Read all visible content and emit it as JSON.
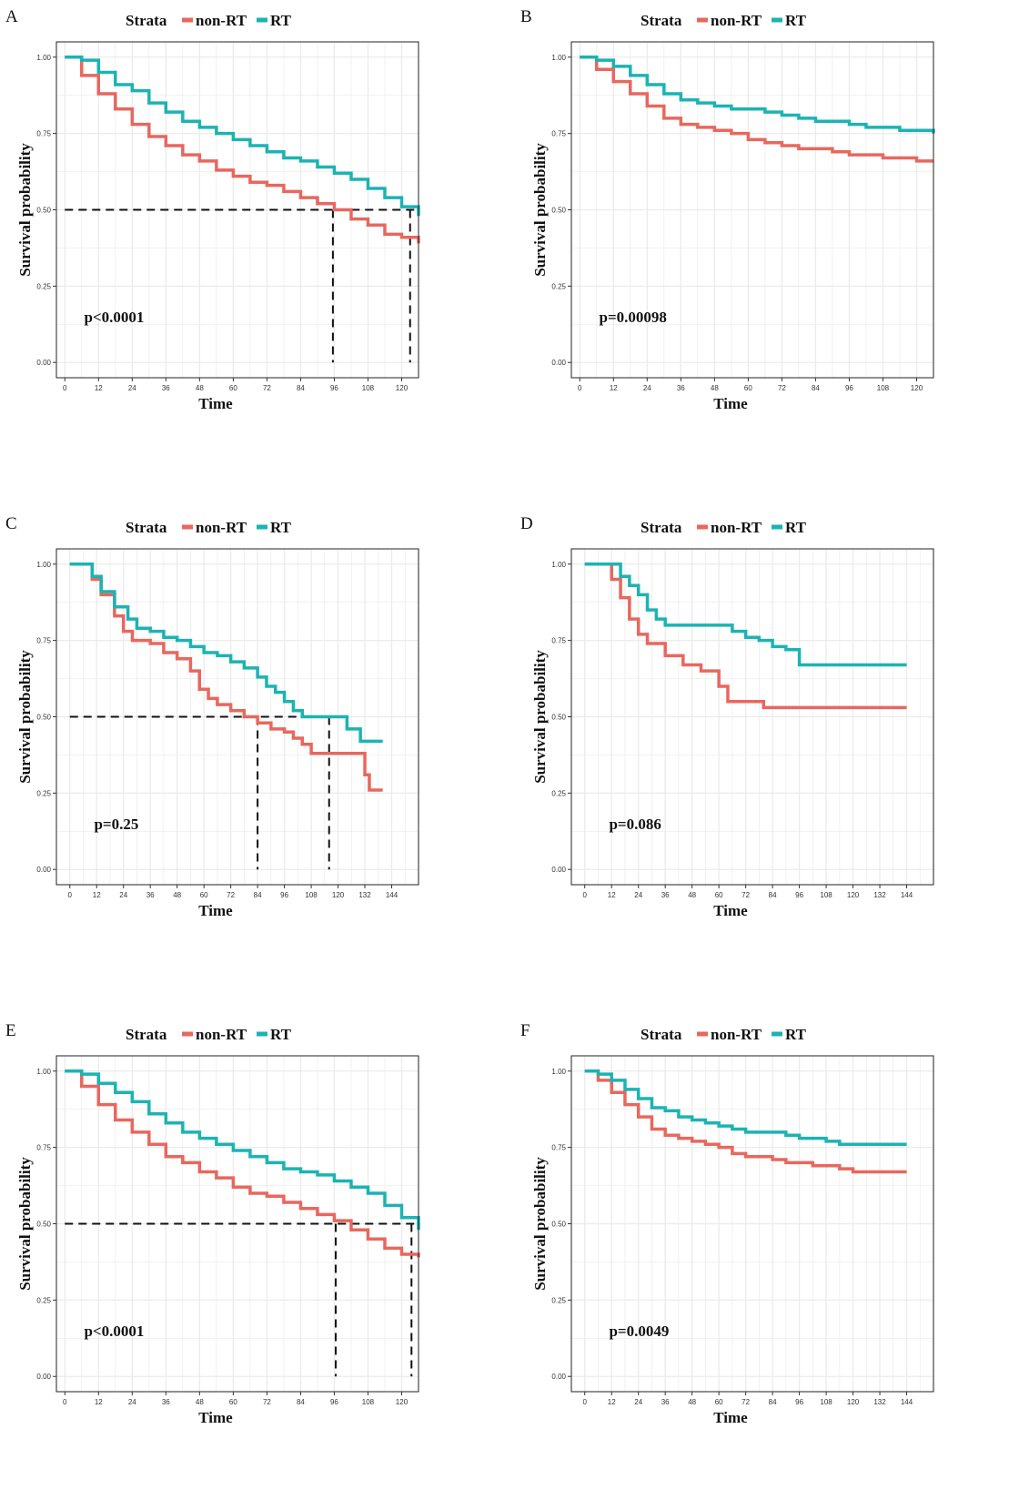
{
  "colors": {
    "non_rt": "#E8675E",
    "rt": "#1CB3B3",
    "grid": "#EBEBEB",
    "median": "#111111"
  },
  "legend": {
    "title": "Strata",
    "items": [
      "non-RT",
      "RT"
    ]
  },
  "chart_data": [
    {
      "panel": "A",
      "type": "line",
      "title": "",
      "xlabel": "Time",
      "ylabel": "Survival probability",
      "xticks": [
        0,
        12,
        24,
        36,
        48,
        60,
        72,
        84,
        96,
        108,
        120
      ],
      "yticks": [
        "0.00",
        "0.25",
        "0.50",
        "0.75",
        "1.00"
      ],
      "xlim": [
        -3,
        126
      ],
      "ylim": [
        -0.05,
        1.05
      ],
      "pvalue": "p<0.0001",
      "pvalue_at": [
        3,
        0.15
      ],
      "medians": [
        95.5,
        123
      ],
      "median_hline_range": [
        0,
        125
      ],
      "series": [
        {
          "name": "non-RT",
          "x": [
            0,
            6,
            12,
            18,
            24,
            30,
            36,
            42,
            48,
            54,
            60,
            66,
            72,
            78,
            84,
            90,
            96,
            102,
            108,
            114,
            120,
            126
          ],
          "y": [
            1.0,
            0.94,
            0.88,
            0.83,
            0.78,
            0.74,
            0.71,
            0.68,
            0.66,
            0.63,
            0.61,
            0.59,
            0.58,
            0.56,
            0.54,
            0.52,
            0.5,
            0.47,
            0.45,
            0.42,
            0.41,
            0.39
          ]
        },
        {
          "name": "RT",
          "x": [
            0,
            6,
            12,
            18,
            24,
            30,
            36,
            42,
            48,
            54,
            60,
            66,
            72,
            78,
            84,
            90,
            96,
            102,
            108,
            114,
            120,
            126
          ],
          "y": [
            1.0,
            0.99,
            0.95,
            0.91,
            0.89,
            0.85,
            0.82,
            0.79,
            0.77,
            0.75,
            0.73,
            0.71,
            0.69,
            0.67,
            0.66,
            0.64,
            0.62,
            0.6,
            0.57,
            0.54,
            0.51,
            0.48
          ]
        }
      ]
    },
    {
      "panel": "B",
      "type": "line",
      "title": "",
      "xlabel": "Time",
      "ylabel": "Survival probability",
      "xticks": [
        0,
        12,
        24,
        36,
        48,
        60,
        72,
        84,
        96,
        108,
        120
      ],
      "yticks": [
        "0.00",
        "0.25",
        "0.50",
        "0.75",
        "1.00"
      ],
      "xlim": [
        -3,
        126
      ],
      "ylim": [
        -0.05,
        1.05
      ],
      "pvalue": "p=0.00098",
      "pvalue_at": [
        3,
        0.15
      ],
      "medians": [],
      "median_hline_range": [],
      "series": [
        {
          "name": "non-RT",
          "x": [
            0,
            6,
            12,
            18,
            24,
            30,
            36,
            42,
            48,
            54,
            60,
            66,
            72,
            78,
            84,
            90,
            96,
            102,
            108,
            114,
            120,
            126
          ],
          "y": [
            1.0,
            0.96,
            0.92,
            0.88,
            0.84,
            0.8,
            0.78,
            0.77,
            0.76,
            0.75,
            0.73,
            0.72,
            0.71,
            0.7,
            0.7,
            0.69,
            0.68,
            0.68,
            0.67,
            0.67,
            0.66,
            0.66
          ]
        },
        {
          "name": "RT",
          "x": [
            0,
            6,
            12,
            18,
            24,
            30,
            36,
            42,
            48,
            54,
            60,
            66,
            72,
            78,
            84,
            90,
            96,
            102,
            108,
            114,
            120,
            126
          ],
          "y": [
            1.0,
            0.99,
            0.97,
            0.94,
            0.91,
            0.88,
            0.86,
            0.85,
            0.84,
            0.83,
            0.83,
            0.82,
            0.81,
            0.8,
            0.79,
            0.79,
            0.78,
            0.77,
            0.77,
            0.76,
            0.76,
            0.75
          ]
        }
      ]
    },
    {
      "panel": "C",
      "type": "line",
      "title": "",
      "xlabel": "Time",
      "ylabel": "Survival probability",
      "xticks": [
        0,
        12,
        24,
        36,
        48,
        60,
        72,
        84,
        96,
        108,
        120,
        132,
        144
      ],
      "yticks": [
        "0.00",
        "0.25",
        "0.50",
        "0.75",
        "1.00"
      ],
      "xlim": [
        -6,
        156
      ],
      "ylim": [
        -0.05,
        1.05
      ],
      "pvalue": "p=0.25",
      "pvalue_at": [
        6,
        0.15
      ],
      "medians": [
        84,
        116
      ],
      "median_hline_range": [
        0,
        116
      ],
      "series": [
        {
          "name": "non-RT",
          "x": [
            0,
            8,
            10,
            14,
            20,
            24,
            28,
            36,
            42,
            48,
            54,
            58,
            62,
            66,
            72,
            78,
            84,
            90,
            96,
            100,
            104,
            108,
            116,
            124,
            128,
            132,
            134,
            140
          ],
          "y": [
            1.0,
            1.0,
            0.95,
            0.9,
            0.83,
            0.78,
            0.75,
            0.74,
            0.71,
            0.69,
            0.65,
            0.59,
            0.56,
            0.54,
            0.52,
            0.5,
            0.48,
            0.46,
            0.45,
            0.43,
            0.41,
            0.38,
            0.38,
            0.38,
            0.38,
            0.31,
            0.26,
            0.26
          ]
        },
        {
          "name": "RT",
          "x": [
            0,
            8,
            10,
            14,
            20,
            26,
            30,
            36,
            42,
            48,
            54,
            60,
            66,
            72,
            78,
            84,
            88,
            92,
            96,
            100,
            104,
            108,
            116,
            124,
            130,
            140
          ],
          "y": [
            1.0,
            1.0,
            0.96,
            0.91,
            0.86,
            0.82,
            0.79,
            0.78,
            0.76,
            0.75,
            0.73,
            0.71,
            0.7,
            0.68,
            0.66,
            0.63,
            0.6,
            0.58,
            0.55,
            0.52,
            0.5,
            0.5,
            0.5,
            0.46,
            0.42,
            0.42
          ]
        }
      ]
    },
    {
      "panel": "D",
      "type": "line",
      "title": "",
      "xlabel": "Time",
      "ylabel": "Survival probability",
      "xticks": [
        0,
        12,
        24,
        36,
        48,
        60,
        72,
        84,
        96,
        108,
        120,
        132,
        144
      ],
      "yticks": [
        "0.00",
        "0.25",
        "0.50",
        "0.75",
        "1.00"
      ],
      "xlim": [
        -6,
        156
      ],
      "ylim": [
        -0.05,
        1.05
      ],
      "pvalue": "p=0.086",
      "pvalue_at": [
        6,
        0.15
      ],
      "medians": [],
      "median_hline_range": [],
      "series": [
        {
          "name": "non-RT",
          "x": [
            0,
            8,
            12,
            16,
            20,
            24,
            28,
            36,
            44,
            52,
            60,
            64,
            66,
            80,
            90,
            144
          ],
          "y": [
            1.0,
            1.0,
            0.95,
            0.89,
            0.82,
            0.77,
            0.74,
            0.7,
            0.67,
            0.65,
            0.6,
            0.55,
            0.55,
            0.53,
            0.53,
            0.53
          ]
        },
        {
          "name": "RT",
          "x": [
            0,
            12,
            16,
            20,
            24,
            28,
            32,
            36,
            48,
            60,
            66,
            72,
            78,
            84,
            90,
            96,
            104,
            144
          ],
          "y": [
            1.0,
            1.0,
            0.96,
            0.93,
            0.9,
            0.85,
            0.82,
            0.8,
            0.8,
            0.8,
            0.78,
            0.76,
            0.75,
            0.73,
            0.72,
            0.67,
            0.67,
            0.67
          ]
        }
      ]
    },
    {
      "panel": "E",
      "type": "line",
      "title": "",
      "xlabel": "Time",
      "ylabel": "Survival probability",
      "xticks": [
        0,
        12,
        24,
        36,
        48,
        60,
        72,
        84,
        96,
        108,
        120
      ],
      "yticks": [
        "0.00",
        "0.25",
        "0.50",
        "0.75",
        "1.00"
      ],
      "xlim": [
        -3,
        126
      ],
      "ylim": [
        -0.05,
        1.05
      ],
      "pvalue": "p<0.0001",
      "pvalue_at": [
        3,
        0.15
      ],
      "medians": [
        96.5,
        123.5
      ],
      "median_hline_range": [
        0,
        125
      ],
      "series": [
        {
          "name": "non-RT",
          "x": [
            0,
            6,
            12,
            18,
            24,
            30,
            36,
            42,
            48,
            54,
            60,
            66,
            72,
            78,
            84,
            90,
            96,
            102,
            108,
            114,
            120,
            126
          ],
          "y": [
            1.0,
            0.95,
            0.89,
            0.84,
            0.8,
            0.76,
            0.72,
            0.7,
            0.67,
            0.65,
            0.62,
            0.6,
            0.59,
            0.57,
            0.55,
            0.53,
            0.51,
            0.48,
            0.45,
            0.42,
            0.4,
            0.39
          ]
        },
        {
          "name": "RT",
          "x": [
            0,
            6,
            12,
            18,
            24,
            30,
            36,
            42,
            48,
            54,
            60,
            66,
            72,
            78,
            84,
            90,
            96,
            102,
            108,
            114,
            120,
            126
          ],
          "y": [
            1.0,
            0.99,
            0.96,
            0.93,
            0.9,
            0.86,
            0.83,
            0.8,
            0.78,
            0.76,
            0.74,
            0.72,
            0.7,
            0.68,
            0.67,
            0.66,
            0.64,
            0.62,
            0.6,
            0.56,
            0.52,
            0.48
          ]
        }
      ]
    },
    {
      "panel": "F",
      "type": "line",
      "title": "",
      "xlabel": "Time",
      "ylabel": "Survival probability",
      "xticks": [
        0,
        12,
        24,
        36,
        48,
        60,
        72,
        84,
        96,
        108,
        120,
        132,
        144
      ],
      "yticks": [
        "0.00",
        "0.25",
        "0.50",
        "0.75",
        "1.00"
      ],
      "xlim": [
        -6,
        156
      ],
      "ylim": [
        -0.05,
        1.05
      ],
      "pvalue": "p=0.0049",
      "pvalue_at": [
        6,
        0.15
      ],
      "medians": [],
      "median_hline_range": [],
      "series": [
        {
          "name": "non-RT",
          "x": [
            0,
            6,
            12,
            18,
            24,
            30,
            36,
            42,
            48,
            54,
            60,
            66,
            72,
            78,
            84,
            90,
            96,
            102,
            108,
            114,
            120,
            126,
            132,
            138,
            144
          ],
          "y": [
            1.0,
            0.97,
            0.93,
            0.89,
            0.85,
            0.81,
            0.79,
            0.78,
            0.77,
            0.76,
            0.75,
            0.73,
            0.72,
            0.72,
            0.71,
            0.7,
            0.7,
            0.69,
            0.69,
            0.68,
            0.67,
            0.67,
            0.67,
            0.67,
            0.67
          ]
        },
        {
          "name": "RT",
          "x": [
            0,
            6,
            12,
            18,
            24,
            30,
            36,
            42,
            48,
            54,
            60,
            66,
            72,
            78,
            84,
            90,
            96,
            102,
            108,
            114,
            120,
            126,
            132,
            138,
            144
          ],
          "y": [
            1.0,
            0.99,
            0.97,
            0.94,
            0.91,
            0.88,
            0.87,
            0.85,
            0.84,
            0.83,
            0.82,
            0.81,
            0.8,
            0.8,
            0.8,
            0.79,
            0.78,
            0.78,
            0.77,
            0.76,
            0.76,
            0.76,
            0.76,
            0.76,
            0.76
          ]
        }
      ]
    }
  ]
}
